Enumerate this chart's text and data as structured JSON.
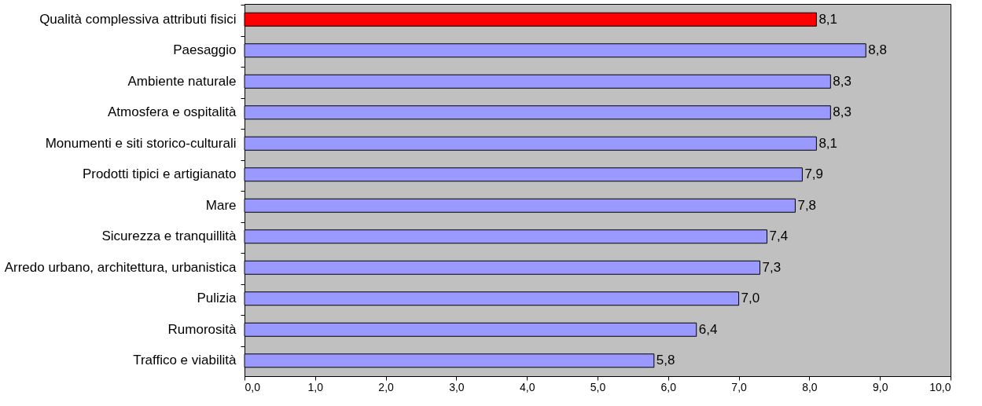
{
  "chart_data": {
    "type": "bar",
    "orientation": "horizontal",
    "categories": [
      "Qualità complessiva attributi fisici",
      "Paesaggio",
      "Ambiente naturale",
      "Atmosfera e ospitalità",
      "Monumenti e siti storico-culturali",
      "Prodotti tipici e artigianato",
      "Mare",
      "Sicurezza e tranquillità",
      "Arredo urbano, architettura, urbanistica",
      "Pulizia",
      "Rumorosità",
      "Traffico e viabilità"
    ],
    "values": [
      8.1,
      8.8,
      8.3,
      8.3,
      8.1,
      7.9,
      7.8,
      7.4,
      7.3,
      7.0,
      6.4,
      5.8
    ],
    "colors": [
      "#ff0000",
      "#9999ff",
      "#9999ff",
      "#9999ff",
      "#9999ff",
      "#9999ff",
      "#9999ff",
      "#9999ff",
      "#9999ff",
      "#9999ff",
      "#9999ff",
      "#9999ff"
    ],
    "value_labels": [
      "8,1",
      "8,8",
      "8,3",
      "8,3",
      "8,1",
      "7,9",
      "7,8",
      "7,4",
      "7,3",
      "7,0",
      "6,4",
      "5,8"
    ],
    "xlim": [
      0,
      10
    ],
    "xticks": [
      {
        "value": 0,
        "label": "0,0"
      },
      {
        "value": 1,
        "label": "1,0"
      },
      {
        "value": 2,
        "label": "2,0"
      },
      {
        "value": 3,
        "label": "3,0"
      },
      {
        "value": 4,
        "label": "4,0"
      },
      {
        "value": 5,
        "label": "5,0"
      },
      {
        "value": 6,
        "label": "6,0"
      },
      {
        "value": 7,
        "label": "7,0"
      },
      {
        "value": 8,
        "label": "8,0"
      },
      {
        "value": 9,
        "label": "9,0"
      },
      {
        "value": 10,
        "label": "10,0"
      }
    ],
    "grid": false
  }
}
